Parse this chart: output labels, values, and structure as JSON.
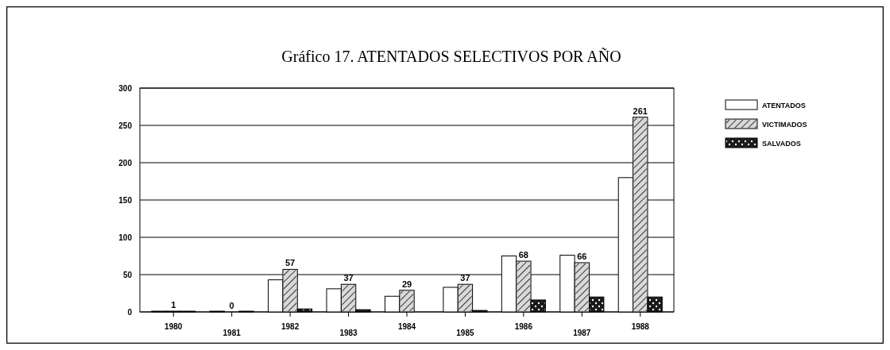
{
  "chart_data": {
    "type": "bar",
    "title": "Gráfico 17. ATENTADOS SELECTIVOS POR AÑO",
    "categories": [
      "1980",
      "1981",
      "1982",
      "1983",
      "1984",
      "1985",
      "1986",
      "1987",
      "1988"
    ],
    "series": [
      {
        "name": "ATENTADOS",
        "color": "#ffffff",
        "values": [
          1,
          1,
          43,
          31,
          21,
          33,
          75,
          76,
          180
        ]
      },
      {
        "name": "VICTIMADOS",
        "color": "#d9d9d9",
        "values": [
          1,
          0,
          57,
          37,
          29,
          37,
          68,
          66,
          261
        ],
        "value_labels": [
          "1",
          "0",
          "57",
          "37",
          "29",
          "37",
          "68",
          "66",
          "261"
        ]
      },
      {
        "name": "SALVADOS",
        "color": "#1a1a1a",
        "values": [
          1,
          1,
          4,
          3,
          0,
          2,
          16,
          20,
          20
        ]
      }
    ],
    "ylim": [
      0,
      300
    ],
    "yticks": [
      0,
      50,
      100,
      150,
      200,
      250,
      300
    ],
    "grid": "y",
    "legend": "right"
  }
}
